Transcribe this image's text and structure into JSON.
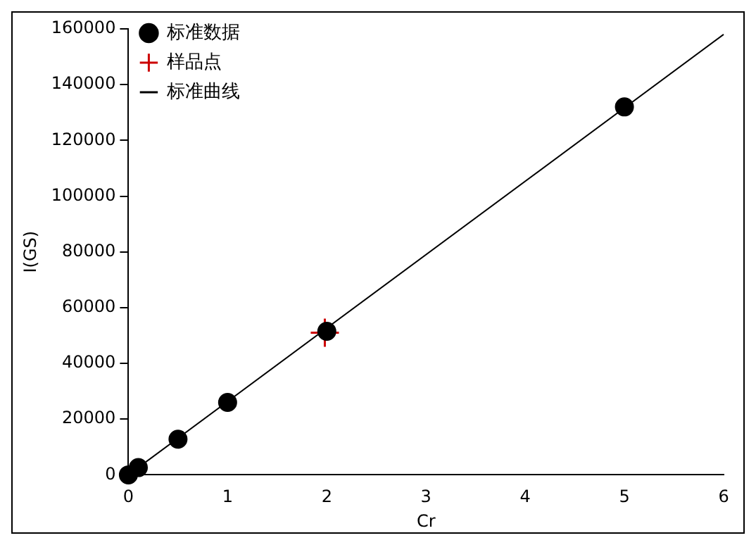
{
  "chart_data": {
    "type": "scatter",
    "xlabel": "Cr",
    "ylabel": "I(GS)",
    "xlim": [
      0,
      6
    ],
    "xticks": [
      0,
      1,
      2,
      3,
      4,
      5,
      6
    ],
    "ylim": [
      0,
      160000
    ],
    "yticks": [
      0,
      20000,
      40000,
      60000,
      80000,
      100000,
      120000,
      140000,
      160000
    ],
    "grid": false,
    "legend": "top left",
    "series": [
      {
        "name": "标准数据",
        "type": "scatter",
        "marker": "circle",
        "color": "#000000",
        "x": [
          0,
          0.1,
          0.5,
          1,
          2,
          5
        ],
        "values": [
          0,
          2600,
          12800,
          26000,
          51500,
          132000
        ]
      },
      {
        "name": "样品点",
        "type": "scatter",
        "marker": "cross",
        "color": "#cc0000",
        "x": [
          1.98
        ],
        "values": [
          51000
        ]
      },
      {
        "name": "标准曲线",
        "type": "line",
        "marker": "none",
        "color": "#000000",
        "x": [
          0,
          6
        ],
        "values": [
          0,
          158000
        ]
      }
    ]
  }
}
